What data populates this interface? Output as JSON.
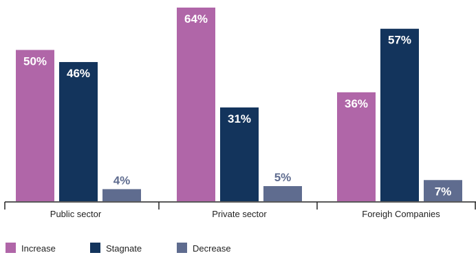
{
  "chart_data": {
    "type": "bar",
    "categories": [
      "Public sector",
      "Private sector",
      "Foreigh Companies"
    ],
    "series": [
      {
        "name": "Increase",
        "values": [
          50,
          64,
          36
        ],
        "labels": [
          "50%",
          "64%",
          "36%"
        ],
        "color": "#b066a8"
      },
      {
        "name": "Stagnate",
        "values": [
          46,
          31,
          57
        ],
        "labels": [
          "46%",
          "31%",
          "57%"
        ],
        "color": "#13345c"
      },
      {
        "name": "Decrease",
        "values": [
          4,
          5,
          7
        ],
        "labels": [
          "4%",
          "5%",
          "7%"
        ],
        "color": "#5f6c8f"
      }
    ],
    "ylim": [
      0,
      64
    ],
    "grid": false,
    "legend_position": "bottom-left",
    "label_colors": {
      "inside": "#ffffff",
      "outside": "#5f6c8f"
    }
  }
}
